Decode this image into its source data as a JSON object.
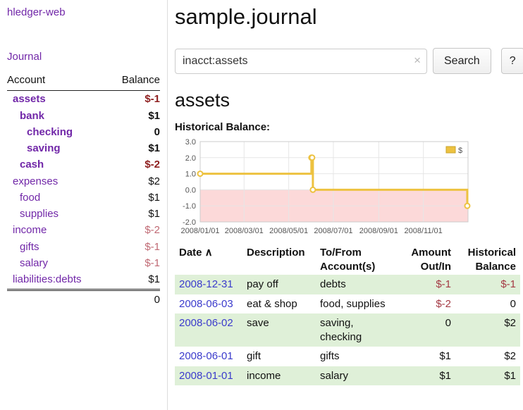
{
  "colors": {
    "link_purple": "#7127a8",
    "link_blue": "#3b3bcc",
    "neg_strong": "#8e1f1f",
    "neg_soft": "#c06a74",
    "neg_table": "#a43a44",
    "row_green": "#dff0d8",
    "chart_line": "#edc240",
    "chart_negative_bg": "#fcd9d9"
  },
  "sidebar": {
    "app_title": "hledger-web",
    "journal_link": "Journal",
    "accounts_table": {
      "headers": {
        "account": "Account",
        "balance": "Balance"
      },
      "rows": [
        {
          "name": "assets",
          "indent": 1,
          "balance": "$-1",
          "selected": true
        },
        {
          "name": "bank",
          "indent": 2,
          "balance": "$1",
          "selected": true
        },
        {
          "name": "checking",
          "indent": 3,
          "balance": "0",
          "selected": true
        },
        {
          "name": "saving",
          "indent": 3,
          "balance": "$1",
          "selected": true
        },
        {
          "name": "cash",
          "indent": 2,
          "balance": "$-2",
          "selected": true
        },
        {
          "name": "expenses",
          "indent": 1,
          "balance": "$2",
          "selected": false
        },
        {
          "name": "food",
          "indent": 2,
          "balance": "$1",
          "selected": false
        },
        {
          "name": "supplies",
          "indent": 2,
          "balance": "$1",
          "selected": false
        },
        {
          "name": "income",
          "indent": 1,
          "balance": "$-2",
          "selected": false
        },
        {
          "name": "gifts",
          "indent": 2,
          "balance": "$-1",
          "selected": false
        },
        {
          "name": "salary",
          "indent": 2,
          "balance": "$-1",
          "selected": false
        },
        {
          "name": "liabilities:debts",
          "indent": 1,
          "balance": "$1",
          "selected": false
        }
      ],
      "total": "0"
    }
  },
  "main": {
    "title": "sample.journal",
    "search": {
      "value": "inacct:assets",
      "clear_icon": "×",
      "button_label": "Search",
      "help_label": "?"
    },
    "account_heading": "assets",
    "register_table": {
      "headers": [
        {
          "key": "date",
          "label": "Date",
          "sort_icon": "∧",
          "sortable": true
        },
        {
          "key": "desc",
          "label": "Description"
        },
        {
          "key": "accts",
          "label": "To/From Account(s)",
          "lines": [
            "To/From",
            "Account(s)"
          ]
        },
        {
          "key": "amt",
          "label": "Amount Out/In",
          "lines": [
            "Amount",
            "Out/In"
          ],
          "align": "right"
        },
        {
          "key": "bal",
          "label": "Historical Balance",
          "lines": [
            "Historical",
            "Balance"
          ],
          "align": "right"
        }
      ],
      "rows": [
        {
          "date": "2008-12-31",
          "description": "pay off",
          "accounts": "debts",
          "amount": "$-1",
          "balance": "$-1"
        },
        {
          "date": "2008-06-03",
          "description": "eat & shop",
          "accounts": "food, supplies",
          "amount": "$-2",
          "balance": "0"
        },
        {
          "date": "2008-06-02",
          "description": "save",
          "accounts": "saving, checking",
          "amount": "0",
          "balance": "$2"
        },
        {
          "date": "2008-06-01",
          "description": "gift",
          "accounts": "gifts",
          "amount": "$1",
          "balance": "$2"
        },
        {
          "date": "2008-01-01",
          "description": "income",
          "accounts": "salary",
          "amount": "$1",
          "balance": "$1"
        }
      ]
    }
  },
  "chart_data": {
    "type": "line",
    "title": "Historical Balance:",
    "xlabel": "",
    "ylabel": "",
    "ylim": [
      -2.0,
      3.0
    ],
    "y_ticks": [
      3.0,
      2.0,
      1.0,
      0.0,
      -1.0,
      -2.0
    ],
    "x_ticks": [
      "2008/01/01",
      "2008/03/01",
      "2008/05/01",
      "2008/07/01",
      "2008/09/01",
      "2008/11/01"
    ],
    "x_tick_days": [
      0,
      60,
      121,
      182,
      244,
      305
    ],
    "x_domain_days": [
      0,
      366
    ],
    "grid": true,
    "legend_position": "top-right",
    "legend": [
      {
        "label": "$",
        "color": "#edc240"
      }
    ],
    "negative_region_color": "#fcd9d9",
    "series": [
      {
        "name": "$",
        "color": "#edc240",
        "step": true,
        "points": [
          {
            "date": "2008-01-01",
            "day": 0,
            "value": 1
          },
          {
            "date": "2008-06-01",
            "day": 152,
            "value": 2
          },
          {
            "date": "2008-06-02",
            "day": 153,
            "value": 2
          },
          {
            "date": "2008-06-03",
            "day": 154,
            "value": 0
          },
          {
            "date": "2008-12-31",
            "day": 365,
            "value": -1
          }
        ]
      }
    ]
  }
}
